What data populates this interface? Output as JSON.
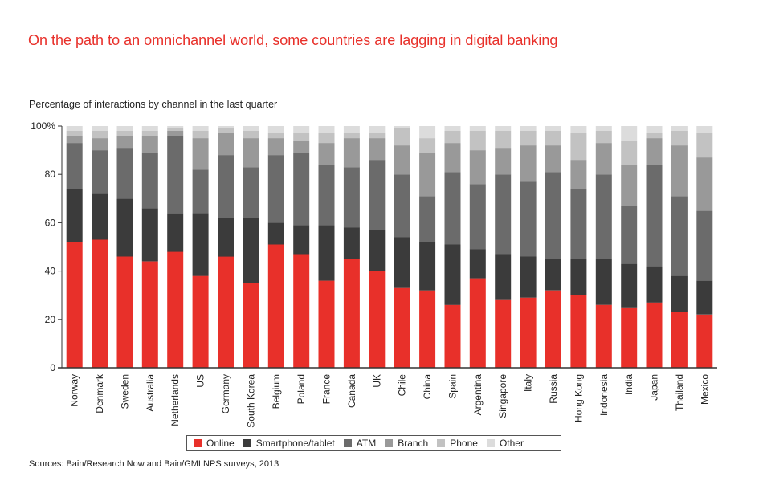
{
  "title": "On the path to an omnichannel world, some countries are lagging in digital banking",
  "subtitle": "Percentage of interactions by channel in the last quarter",
  "source": "Sources: Bain/Research Now and Bain/GMI NPS surveys, 2013",
  "chart_data": {
    "type": "bar",
    "stacked": true,
    "ylim": [
      0,
      100
    ],
    "yticks": [
      "0",
      "20",
      "40",
      "60",
      "80",
      "100%"
    ],
    "categories": [
      "Norway",
      "Denmark",
      "Sweden",
      "Australia",
      "Netherlands",
      "US",
      "Germany",
      "South Korea",
      "Belgium",
      "Poland",
      "France",
      "Canada",
      "UK",
      "Chile",
      "China",
      "Spain",
      "Argentina",
      "Singapore",
      "Italy",
      "Russia",
      "Hong Kong",
      "Indonesia",
      "India",
      "Japan",
      "Thailand",
      "Mexico"
    ],
    "series": [
      {
        "name": "Online",
        "color": "#e8302a",
        "values": [
          52,
          53,
          46,
          44,
          48,
          38,
          46,
          35,
          51,
          47,
          36,
          45,
          40,
          33,
          32,
          26,
          37,
          28,
          29,
          32,
          30,
          26,
          25,
          27,
          23,
          22
        ]
      },
      {
        "name": "Smartphone/tablet",
        "color": "#3b3b3b",
        "values": [
          22,
          19,
          24,
          22,
          16,
          26,
          16,
          27,
          9,
          12,
          23,
          13,
          17,
          21,
          20,
          25,
          12,
          19,
          17,
          13,
          15,
          19,
          18,
          15,
          15,
          14
        ]
      },
      {
        "name": "ATM",
        "color": "#6b6b6b",
        "values": [
          19,
          18,
          21,
          23,
          32,
          18,
          26,
          21,
          28,
          30,
          25,
          25,
          29,
          26,
          19,
          30,
          27,
          33,
          31,
          36,
          29,
          35,
          24,
          42,
          33,
          29
        ]
      },
      {
        "name": "Branch",
        "color": "#999999",
        "values": [
          3,
          5,
          5,
          7,
          2,
          13,
          9,
          12,
          7,
          5,
          9,
          12,
          9,
          12,
          18,
          12,
          14,
          11,
          15,
          11,
          12,
          13,
          17,
          11,
          21,
          22
        ]
      },
      {
        "name": "Phone",
        "color": "#c2c2c2",
        "values": [
          2,
          3,
          2,
          2,
          1,
          3,
          2,
          3,
          2,
          3,
          4,
          2,
          2,
          7,
          6,
          5,
          8,
          7,
          6,
          6,
          11,
          5,
          10,
          2,
          6,
          10
        ]
      },
      {
        "name": "Other",
        "color": "#dcdcdc",
        "values": [
          2,
          2,
          2,
          2,
          1,
          2,
          1,
          2,
          3,
          3,
          3,
          3,
          3,
          1,
          5,
          2,
          2,
          2,
          2,
          2,
          3,
          2,
          6,
          3,
          2,
          3
        ]
      }
    ]
  }
}
